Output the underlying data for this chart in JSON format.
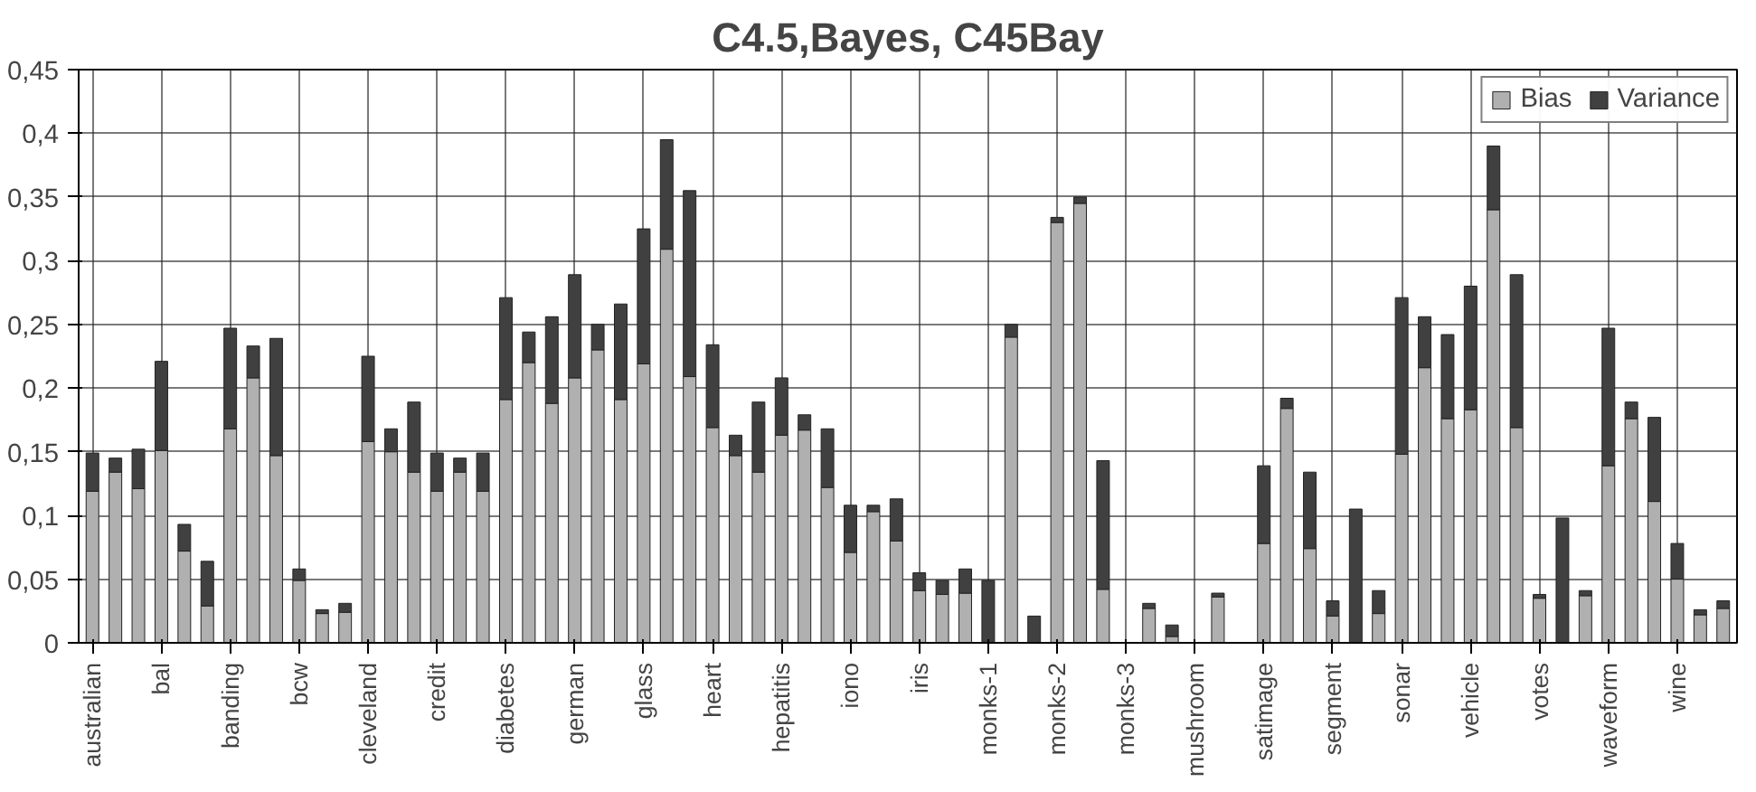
{
  "chart_data": {
    "type": "bar",
    "title": "C4.5,Bayes, C45Bay",
    "stacked": true,
    "legend": "top right",
    "grid": true,
    "categories": [
      "australian",
      null,
      null,
      "bal",
      null,
      null,
      "banding",
      null,
      null,
      "bcw",
      null,
      null,
      "cleveland",
      null,
      null,
      "credit",
      null,
      null,
      "diabetes",
      null,
      null,
      "german",
      null,
      null,
      "glass",
      null,
      null,
      "heart",
      null,
      null,
      "hepatitis",
      null,
      null,
      "iono",
      null,
      null,
      "iris",
      null,
      null,
      "monks-1",
      null,
      null,
      "monks-2",
      null,
      null,
      "monks-3",
      null,
      null,
      "mushroom",
      null,
      null,
      "satimage",
      null,
      null,
      "segment",
      null,
      null,
      "sonar",
      null,
      null,
      "vehicle",
      null,
      null,
      "votes",
      null,
      null,
      "waveform",
      null,
      null,
      "wine",
      null,
      null
    ],
    "ylim": [
      0,
      0.45
    ],
    "yticks": [
      0,
      {
        "value": 0.05,
        "label": "0,05"
      },
      {
        "value": 0.1,
        "label": "0,1"
      },
      {
        "value": 0.15,
        "label": "0,15"
      },
      {
        "value": 0.2,
        "label": "0,2"
      },
      {
        "value": 0.25,
        "label": "0,25"
      },
      {
        "value": 0.3,
        "label": "0,3"
      },
      {
        "value": 0.35,
        "label": "0,35"
      },
      {
        "value": 0.4,
        "label": "0,4"
      },
      {
        "value": 0.45,
        "label": "0,45"
      }
    ],
    "series": [
      {
        "name": "Bias",
        "color": "#b0b0b0",
        "values": [
          0.119,
          0.134,
          0.121,
          0.151,
          0.072,
          0.029,
          0.168,
          0.208,
          0.147,
          0.049,
          0.023,
          0.024,
          0.158,
          0.15,
          0.134,
          0.119,
          0.134,
          0.119,
          0.191,
          0.22,
          0.188,
          0.208,
          0.23,
          0.191,
          0.219,
          0.309,
          0.209,
          0.169,
          0.147,
          0.134,
          0.163,
          0.167,
          0.122,
          0.071,
          0.103,
          0.08,
          0.041,
          0.038,
          0.039,
          0,
          0.24,
          0,
          0.33,
          0.345,
          0.042,
          null,
          0.027,
          0.005,
          null,
          0.036,
          null,
          0.078,
          0.184,
          0.074,
          0.021,
          0,
          0.023,
          0.148,
          0.216,
          0.176,
          0.183,
          0.34,
          0.169,
          0.035,
          0,
          0.037,
          0.139,
          0.176,
          0.111,
          0.05,
          0.022,
          0.027
        ]
      },
      {
        "name": "Variance",
        "color": "#404040",
        "values": [
          0.03,
          0.011,
          0.031,
          0.07,
          0.021,
          0.035,
          0.079,
          0.025,
          0.092,
          0.009,
          0.003,
          0.007,
          0.067,
          0.018,
          0.055,
          0.03,
          0.011,
          0.03,
          0.08,
          0.024,
          0.068,
          0.081,
          0.02,
          0.075,
          0.106,
          0.086,
          0.146,
          0.065,
          0.016,
          0.055,
          0.045,
          0.012,
          0.046,
          0.037,
          0.005,
          0.033,
          0.014,
          0.011,
          0.019,
          0.049,
          0.01,
          0.021,
          0.004,
          0.005,
          0.101,
          null,
          0.004,
          0.009,
          null,
          0.003,
          null,
          0.061,
          0.008,
          0.06,
          0.012,
          0.105,
          0.018,
          0.123,
          0.04,
          0.066,
          0.097,
          0.05,
          0.12,
          0.003,
          0.098,
          0.004,
          0.108,
          0.013,
          0.066,
          0.028,
          0.004,
          0.006
        ]
      }
    ]
  }
}
